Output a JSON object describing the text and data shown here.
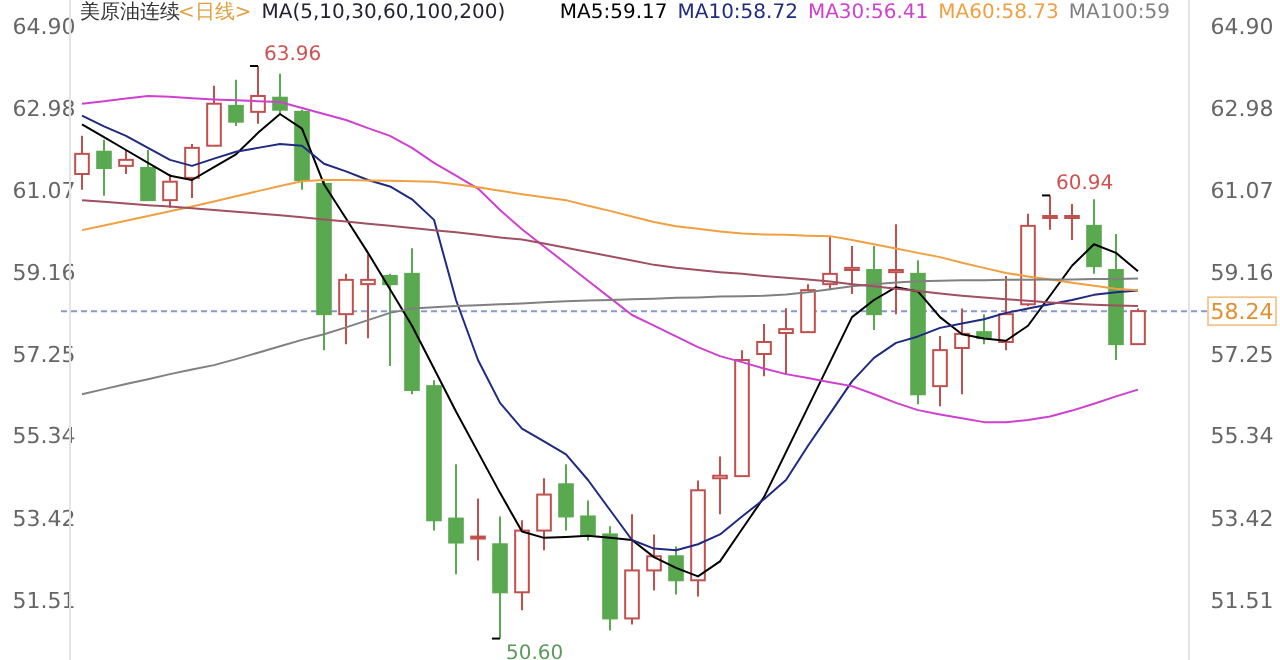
{
  "chart_data": {
    "type": "candlestick",
    "title": "美原油连续",
    "subtitle": "<日线>",
    "annotations": [
      "MA(5,10,30,60,100,200)",
      "63.96",
      "60.94",
      "50.60"
    ],
    "categories": [
      null,
      null,
      null,
      null,
      null,
      null,
      null,
      null,
      null,
      null,
      null,
      null,
      null,
      null,
      null,
      null,
      null,
      null,
      null,
      null,
      null,
      null,
      null,
      null,
      null,
      null,
      null,
      null,
      null,
      null,
      null,
      null,
      null,
      null,
      null,
      null,
      null,
      null,
      null,
      null,
      null,
      null,
      null,
      null,
      null,
      null,
      null,
      null,
      null
    ],
    "ohlc": [
      [
        61.44,
        62.33,
        61.07,
        61.91
      ],
      [
        61.96,
        62.24,
        60.93,
        61.58
      ],
      [
        61.63,
        62.0,
        61.44,
        61.77
      ],
      [
        61.58,
        62.0,
        60.83,
        60.83
      ],
      [
        60.83,
        61.44,
        60.65,
        61.26
      ],
      [
        61.35,
        62.14,
        60.88,
        62.05
      ],
      [
        62.1,
        63.5,
        62.1,
        63.08
      ],
      [
        63.03,
        63.64,
        62.56,
        62.66
      ],
      [
        62.89,
        63.96,
        62.61,
        63.26
      ],
      [
        63.22,
        63.78,
        62.84,
        62.94
      ],
      [
        62.89,
        62.94,
        61.07,
        61.3
      ],
      [
        61.21,
        61.3,
        57.33,
        58.17
      ],
      [
        58.17,
        59.11,
        57.47,
        58.97
      ],
      [
        58.87,
        59.57,
        57.61,
        58.97
      ],
      [
        59.06,
        59.11,
        56.96,
        58.87
      ],
      [
        59.11,
        59.71,
        56.3,
        56.4
      ],
      [
        56.49,
        56.63,
        53.12,
        53.36
      ],
      [
        53.4,
        54.67,
        52.1,
        52.84
      ],
      [
        52.94,
        53.87,
        52.42,
        52.98
      ],
      [
        52.8,
        53.45,
        50.6,
        51.68
      ],
      [
        51.68,
        53.36,
        51.26,
        53.12
      ],
      [
        53.12,
        54.34,
        52.66,
        53.96
      ],
      [
        54.2,
        54.67,
        53.12,
        53.45
      ],
      [
        53.45,
        53.82,
        52.89,
        53.03
      ],
      [
        53.03,
        53.22,
        50.79,
        51.07
      ],
      [
        51.07,
        53.5,
        50.93,
        52.19
      ],
      [
        52.19,
        53.03,
        51.72,
        52.52
      ],
      [
        52.52,
        52.75,
        51.63,
        51.96
      ],
      [
        51.96,
        54.29,
        51.58,
        54.06
      ],
      [
        54.34,
        54.85,
        53.5,
        54.4
      ],
      [
        54.39,
        57.33,
        54.39,
        57.1
      ],
      [
        57.24,
        57.94,
        56.72,
        57.52
      ],
      [
        57.73,
        58.31,
        56.77,
        57.82
      ],
      [
        57.75,
        58.87,
        57.75,
        58.73
      ],
      [
        58.87,
        59.99,
        58.73,
        59.11
      ],
      [
        59.2,
        59.76,
        58.64,
        59.25
      ],
      [
        59.2,
        59.76,
        57.8,
        58.17
      ],
      [
        59.15,
        60.27,
        58.17,
        59.2
      ],
      [
        59.11,
        59.43,
        56.07,
        56.3
      ],
      [
        56.49,
        57.66,
        56.02,
        57.33
      ],
      [
        57.38,
        58.3,
        56.3,
        57.71
      ],
      [
        57.75,
        58.17,
        57.47,
        57.61
      ],
      [
        57.52,
        59.06,
        57.33,
        58.17
      ],
      [
        58.4,
        60.51,
        58.36,
        60.23
      ],
      [
        60.42,
        60.94,
        60.14,
        60.46
      ],
      [
        60.42,
        60.74,
        59.9,
        60.46
      ],
      [
        60.23,
        60.85,
        59.11,
        59.29
      ],
      [
        59.2,
        60.04,
        57.1,
        57.47
      ],
      [
        57.47,
        58.3,
        57.47,
        58.24
      ]
    ],
    "colors": [
      "#c0504d",
      "#5aa84f",
      "#c0504d",
      "#5aa84f",
      "#c0504d",
      "#c0504d",
      "#c0504d",
      "#5aa84f",
      "#c0504d",
      "#5aa84f",
      "#5aa84f",
      "#5aa84f",
      "#c0504d",
      "#c0504d",
      "#5aa84f",
      "#5aa84f",
      "#5aa84f",
      "#5aa84f",
      "#c0504d",
      "#5aa84f",
      "#c0504d",
      "#c0504d",
      "#5aa84f",
      "#5aa84f",
      "#5aa84f",
      "#c0504d",
      "#c0504d",
      "#5aa84f",
      "#c0504d",
      "#c0504d",
      "#c0504d",
      "#c0504d",
      "#c0504d",
      "#c0504d",
      "#c0504d",
      "#c0504d",
      "#5aa84f",
      "#c0504d",
      "#5aa84f",
      "#c0504d",
      "#c0504d",
      "#5aa84f",
      "#c0504d",
      "#c0504d",
      "#c0504d",
      "#c0504d",
      "#5aa84f",
      "#5aa84f",
      "#c0504d"
    ],
    "series": [
      {
        "name": "MA5:59.17",
        "type": "line",
        "color": "#000000",
        "values": [
          62.6,
          62.3,
          62.0,
          61.7,
          61.4,
          61.3,
          61.6,
          61.9,
          62.4,
          62.84,
          62.5,
          61.2,
          60.4,
          59.6,
          58.75,
          57.9,
          56.9,
          55.9,
          54.95,
          54.0,
          53.1,
          52.95,
          52.97,
          53.0,
          52.95,
          52.9,
          52.5,
          52.25,
          52.05,
          52.4,
          53.15,
          53.9,
          54.95,
          56.0,
          57.05,
          58.1,
          58.5,
          58.8,
          58.7,
          58.1,
          57.7,
          57.6,
          57.55,
          57.9,
          58.6,
          59.3,
          59.8,
          59.6,
          59.17
        ]
      },
      {
        "name": "MA10:58.72",
        "type": "line",
        "color": "#1f2a80",
        "values": [
          62.8,
          62.55,
          62.33,
          62.05,
          61.77,
          61.63,
          61.8,
          61.96,
          62.05,
          62.14,
          62.1,
          61.68,
          61.5,
          61.3,
          61.15,
          60.85,
          60.37,
          58.5,
          57.1,
          56.1,
          55.5,
          55.2,
          54.9,
          54.3,
          53.6,
          52.9,
          52.7,
          52.66,
          52.8,
          53.03,
          53.45,
          53.85,
          54.3,
          55.1,
          55.85,
          56.6,
          57.15,
          57.5,
          57.65,
          57.85,
          57.95,
          58.05,
          58.2,
          58.3,
          58.4,
          58.5,
          58.62,
          58.68,
          58.72
        ]
      },
      {
        "name": "MA30:56.41",
        "type": "line",
        "color": "#d040d0",
        "values": [
          63.08,
          63.14,
          63.2,
          63.26,
          63.24,
          63.21,
          63.18,
          63.16,
          63.14,
          63.12,
          62.98,
          62.84,
          62.7,
          62.51,
          62.33,
          62.05,
          61.7,
          61.4,
          61.1,
          60.6,
          60.15,
          59.75,
          59.35,
          58.95,
          58.55,
          58.15,
          57.9,
          57.65,
          57.4,
          57.19,
          57.05,
          56.9,
          56.77,
          56.68,
          56.58,
          56.49,
          56.3,
          56.1,
          55.93,
          55.83,
          55.74,
          55.65,
          55.65,
          55.7,
          55.78,
          55.92,
          56.08,
          56.25,
          56.41
        ]
      },
      {
        "name": "MA60:58.73",
        "type": "line",
        "color": "#f0a040",
        "values": [
          60.13,
          60.24,
          60.35,
          60.46,
          60.57,
          60.68,
          60.8,
          60.92,
          61.04,
          61.16,
          61.27,
          61.3,
          61.3,
          61.29,
          61.28,
          61.27,
          61.26,
          61.2,
          61.13,
          61.05,
          60.97,
          60.9,
          60.83,
          60.7,
          60.58,
          60.45,
          60.32,
          60.22,
          60.16,
          60.1,
          60.05,
          60.03,
          60.02,
          60.0,
          59.99,
          59.9,
          59.8,
          59.7,
          59.6,
          59.5,
          59.37,
          59.25,
          59.13,
          59.05,
          58.98,
          58.9,
          58.83,
          58.76,
          58.73
        ]
      },
      {
        "name": "MA100:59",
        "type": "line",
        "color": "#808080",
        "values": [
          56.3,
          56.42,
          56.54,
          56.65,
          56.77,
          56.88,
          56.98,
          57.12,
          57.27,
          57.42,
          57.57,
          57.7,
          57.86,
          58.03,
          58.2,
          58.3,
          58.33,
          58.36,
          58.38,
          58.4,
          58.42,
          58.45,
          58.47,
          58.49,
          58.5,
          58.52,
          58.53,
          58.55,
          58.56,
          58.58,
          58.59,
          58.6,
          58.63,
          58.68,
          58.75,
          58.82,
          58.87,
          58.91,
          58.94,
          58.95,
          58.96,
          58.96,
          58.97,
          58.97,
          58.98,
          58.98,
          58.99,
          58.99,
          59.0
        ]
      },
      {
        "type": "line",
        "color": "#a05060",
        "values": [
          60.83,
          60.79,
          60.75,
          60.71,
          60.68,
          60.64,
          60.6,
          60.56,
          60.52,
          60.48,
          60.43,
          60.38,
          60.33,
          60.28,
          60.23,
          60.18,
          60.13,
          60.08,
          60.02,
          59.96,
          59.91,
          59.82,
          59.72,
          59.62,
          59.52,
          59.42,
          59.32,
          59.25,
          59.2,
          59.15,
          59.11,
          59.06,
          59.02,
          58.98,
          58.93,
          58.87,
          58.82,
          58.76,
          58.71,
          58.65,
          58.6,
          58.56,
          58.52,
          58.48,
          58.44,
          58.41,
          58.39,
          58.37,
          58.36
        ]
      }
    ],
    "ylim": [
      50.1,
      65.5
    ],
    "yticks": [
      {
        "value": 64.9,
        "label": "64.90"
      },
      62.98,
      61.07,
      59.16,
      57.25,
      55.34,
      53.42,
      51.51
    ],
    "y2lim": [
      50.1,
      65.5
    ],
    "y2ticks": [
      {
        "value": 64.9,
        "label": "64.90"
      },
      62.98,
      61.07,
      59.16,
      57.25,
      55.34,
      53.42,
      51.51
    ],
    "ref_lines": [
      {
        "axis": "y2",
        "value": 58.24,
        "label": "58.24",
        "color": "#8899cc",
        "line_style": "dashed"
      }
    ],
    "legend": "top right",
    "tick_labels": "y"
  }
}
